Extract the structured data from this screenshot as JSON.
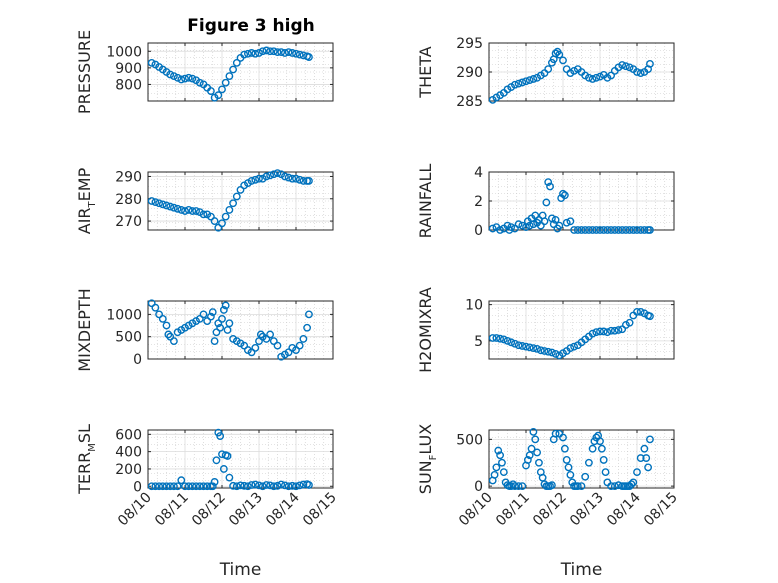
{
  "title": "Figure 3 high",
  "colors": {
    "marker": "#0072BD",
    "axis": "#262626",
    "grid": "#9a9a9a"
  },
  "chart_data": [
    {
      "type": "scatter",
      "ylabel": "PRESSURE",
      "xlim": [
        0,
        5
      ],
      "ylim": [
        700,
        1050
      ],
      "yticks": [
        800,
        900,
        1000
      ],
      "xticks": [
        0,
        1,
        2,
        3,
        4,
        5
      ],
      "x": [
        0.1,
        0.2,
        0.3,
        0.4,
        0.5,
        0.6,
        0.7,
        0.8,
        0.9,
        1.0,
        1.1,
        1.2,
        1.3,
        1.4,
        1.5,
        1.6,
        1.7,
        1.8,
        1.9,
        2.0,
        2.1,
        2.2,
        2.3,
        2.4,
        2.5,
        2.6,
        2.7,
        2.8,
        2.9,
        3.0,
        3.1,
        3.2,
        3.3,
        3.4,
        3.5,
        3.6,
        3.7,
        3.8,
        3.9,
        4.0,
        4.1,
        4.2,
        4.3,
        4.35
      ],
      "y": [
        930,
        920,
        905,
        890,
        875,
        860,
        850,
        840,
        830,
        835,
        840,
        835,
        825,
        810,
        800,
        780,
        760,
        720,
        735,
        770,
        810,
        850,
        890,
        930,
        960,
        980,
        985,
        990,
        985,
        990,
        1000,
        1005,
        1000,
        1000,
        995,
        995,
        990,
        995,
        990,
        985,
        980,
        975,
        970,
        965
      ]
    },
    {
      "type": "scatter",
      "ylabel": "THETA",
      "xlim": [
        0,
        5
      ],
      "ylim": [
        285,
        295
      ],
      "yticks": [
        285,
        290,
        295
      ],
      "xticks": [
        0,
        1,
        2,
        3,
        4,
        5
      ],
      "x": [
        0.1,
        0.2,
        0.3,
        0.4,
        0.5,
        0.6,
        0.7,
        0.8,
        0.9,
        1.0,
        1.1,
        1.2,
        1.3,
        1.4,
        1.5,
        1.6,
        1.7,
        1.75,
        1.8,
        1.85,
        1.9,
        2.0,
        2.1,
        2.2,
        2.3,
        2.4,
        2.5,
        2.6,
        2.7,
        2.8,
        2.9,
        3.0,
        3.1,
        3.2,
        3.3,
        3.4,
        3.5,
        3.6,
        3.7,
        3.8,
        3.9,
        4.0,
        4.1,
        4.2,
        4.3,
        4.35
      ],
      "y": [
        285.2,
        285.6,
        286.0,
        286.4,
        287.0,
        287.4,
        287.8,
        288.0,
        288.2,
        288.4,
        288.6,
        288.8,
        289.0,
        289.4,
        289.8,
        290.5,
        291.6,
        292.2,
        293.2,
        293.5,
        293.0,
        292.0,
        290.5,
        289.8,
        290.2,
        290.5,
        290.0,
        289.4,
        289.0,
        288.8,
        289.0,
        289.2,
        289.5,
        289.0,
        289.4,
        290.2,
        290.8,
        291.2,
        291.0,
        290.8,
        290.5,
        290.0,
        289.8,
        290.0,
        290.5,
        291.4
      ]
    },
    {
      "type": "scatter",
      "ylabel": "AIR",
      "ylabel_sub": "T",
      "ylabel_tail": "EMP",
      "xlim": [
        0,
        5
      ],
      "ylim": [
        266,
        292
      ],
      "yticks": [
        270,
        280,
        290
      ],
      "xticks": [
        0,
        1,
        2,
        3,
        4,
        5
      ],
      "x": [
        0.1,
        0.2,
        0.3,
        0.4,
        0.5,
        0.6,
        0.7,
        0.8,
        0.9,
        1.0,
        1.1,
        1.2,
        1.3,
        1.4,
        1.5,
        1.6,
        1.7,
        1.8,
        1.9,
        2.0,
        2.1,
        2.2,
        2.3,
        2.4,
        2.5,
        2.6,
        2.7,
        2.8,
        2.9,
        3.0,
        3.1,
        3.2,
        3.3,
        3.4,
        3.5,
        3.6,
        3.7,
        3.8,
        3.9,
        4.0,
        4.1,
        4.2,
        4.3,
        4.35
      ],
      "y": [
        279,
        278.5,
        278,
        277.5,
        277,
        276.5,
        276,
        275.5,
        275,
        274.5,
        275,
        274.5,
        274.5,
        274,
        273,
        273,
        272,
        270,
        267,
        269,
        272,
        275,
        278,
        281,
        284,
        286,
        287,
        288,
        288.5,
        289,
        289,
        290,
        290.5,
        291,
        291.5,
        291,
        290,
        289.5,
        289,
        289,
        288.5,
        288,
        288,
        288
      ]
    },
    {
      "type": "scatter",
      "ylabel": "RAINFALL",
      "xlim": [
        0,
        5
      ],
      "ylim": [
        0,
        4
      ],
      "yticks": [
        0,
        2,
        4
      ],
      "xticks": [
        0,
        1,
        2,
        3,
        4,
        5
      ],
      "x": [
        0.1,
        0.2,
        0.3,
        0.4,
        0.5,
        0.55,
        0.6,
        0.7,
        0.8,
        0.9,
        1.0,
        1.05,
        1.1,
        1.15,
        1.2,
        1.25,
        1.3,
        1.35,
        1.4,
        1.45,
        1.5,
        1.55,
        1.6,
        1.65,
        1.7,
        1.75,
        1.8,
        1.85,
        1.9,
        1.95,
        2.0,
        2.05,
        2.1,
        2.2,
        2.3,
        2.4,
        2.5,
        2.6,
        2.7,
        2.8,
        2.9,
        3.0,
        3.1,
        3.2,
        3.3,
        3.4,
        3.5,
        3.6,
        3.7,
        3.8,
        3.9,
        4.0,
        4.1,
        4.2,
        4.3,
        4.35
      ],
      "y": [
        0.1,
        0.2,
        0.0,
        0.1,
        0.3,
        0.0,
        0.2,
        0.1,
        0.4,
        0.3,
        0.2,
        0.6,
        0.3,
        0.8,
        0.4,
        1.0,
        0.5,
        0.7,
        0.3,
        1.0,
        0.6,
        1.9,
        3.3,
        3.0,
        0.8,
        0.4,
        0.7,
        0.1,
        0.3,
        2.2,
        2.5,
        2.4,
        0.5,
        0.6,
        0.0,
        0.0,
        0.0,
        0.0,
        0.0,
        0.0,
        0.0,
        0.0,
        0.0,
        0.0,
        0.0,
        0.0,
        0.0,
        0.0,
        0.0,
        0.0,
        0.0,
        0.0,
        0.0,
        0.0,
        0.0,
        0.0
      ]
    },
    {
      "type": "scatter",
      "ylabel": "MIXDEPTH",
      "xlim": [
        0,
        5
      ],
      "ylim": [
        0,
        1300
      ],
      "yticks": [
        0,
        500,
        1000
      ],
      "xticks": [
        0,
        1,
        2,
        3,
        4,
        5
      ],
      "x": [
        0.1,
        0.2,
        0.3,
        0.4,
        0.5,
        0.55,
        0.6,
        0.7,
        0.8,
        0.9,
        1.0,
        1.1,
        1.2,
        1.3,
        1.4,
        1.5,
        1.6,
        1.7,
        1.75,
        1.8,
        1.85,
        1.9,
        1.95,
        2.0,
        2.05,
        2.1,
        2.15,
        2.2,
        2.3,
        2.4,
        2.5,
        2.6,
        2.7,
        2.8,
        2.9,
        3.0,
        3.05,
        3.1,
        3.2,
        3.3,
        3.4,
        3.5,
        3.6,
        3.7,
        3.8,
        3.9,
        4.0,
        4.1,
        4.2,
        4.3,
        4.35
      ],
      "y": [
        1250,
        1150,
        1000,
        900,
        750,
        550,
        500,
        400,
        600,
        650,
        700,
        750,
        800,
        850,
        900,
        1000,
        850,
        950,
        1050,
        400,
        600,
        800,
        700,
        900,
        1100,
        1200,
        650,
        800,
        450,
        400,
        350,
        300,
        200,
        150,
        250,
        400,
        550,
        500,
        450,
        550,
        400,
        300,
        50,
        100,
        150,
        250,
        200,
        300,
        450,
        700,
        1000
      ]
    },
    {
      "type": "scatter",
      "ylabel": "H2OMIXRA",
      "xlim": [
        0,
        5
      ],
      "ylim": [
        2.5,
        10.5
      ],
      "yticks": [
        5,
        10
      ],
      "xticks": [
        0,
        1,
        2,
        3,
        4,
        5
      ],
      "x": [
        0.1,
        0.2,
        0.3,
        0.4,
        0.5,
        0.6,
        0.7,
        0.8,
        0.9,
        1.0,
        1.1,
        1.2,
        1.3,
        1.4,
        1.5,
        1.6,
        1.7,
        1.8,
        1.9,
        2.0,
        2.1,
        2.2,
        2.3,
        2.4,
        2.5,
        2.6,
        2.7,
        2.8,
        2.9,
        3.0,
        3.1,
        3.2,
        3.3,
        3.4,
        3.5,
        3.6,
        3.7,
        3.8,
        3.9,
        4.0,
        4.1,
        4.2,
        4.3,
        4.35
      ],
      "y": [
        5.4,
        5.4,
        5.3,
        5.2,
        5.0,
        4.8,
        4.6,
        4.4,
        4.3,
        4.2,
        4.1,
        4.0,
        3.9,
        3.7,
        3.6,
        3.5,
        3.4,
        3.2,
        3.0,
        3.3,
        3.6,
        4.0,
        4.2,
        4.4,
        4.8,
        5.2,
        5.6,
        6.0,
        6.2,
        6.3,
        6.3,
        6.2,
        6.4,
        6.4,
        6.5,
        6.6,
        7.2,
        7.5,
        8.5,
        9.0,
        9.0,
        8.8,
        8.5,
        8.4
      ]
    },
    {
      "type": "scatter",
      "ylabel": "TERR",
      "ylabel_sub": "M",
      "ylabel_tail": "SL",
      "xlim": [
        0,
        5
      ],
      "ylim": [
        -20,
        650
      ],
      "yticks": [
        0,
        200,
        400,
        600
      ],
      "xticks": [
        0,
        1,
        2,
        3,
        4,
        5
      ],
      "xtick_labels": [
        "08/10",
        "08/11",
        "08/12",
        "08/13",
        "08/14",
        "08/15"
      ],
      "xlabel": "Time",
      "x": [
        0.1,
        0.2,
        0.3,
        0.4,
        0.5,
        0.6,
        0.7,
        0.8,
        0.9,
        1.0,
        1.1,
        1.2,
        1.3,
        1.4,
        1.5,
        1.6,
        1.7,
        1.75,
        1.8,
        1.85,
        1.9,
        1.95,
        2.0,
        2.05,
        2.1,
        2.15,
        2.2,
        2.3,
        2.4,
        2.5,
        2.6,
        2.7,
        2.8,
        2.9,
        3.0,
        3.1,
        3.2,
        3.3,
        3.4,
        3.5,
        3.6,
        3.7,
        3.8,
        3.9,
        4.0,
        4.1,
        4.2,
        4.3,
        4.35
      ],
      "y": [
        0,
        0,
        0,
        0,
        0,
        0,
        0,
        0,
        70,
        0,
        0,
        0,
        0,
        0,
        0,
        0,
        0,
        0,
        50,
        300,
        620,
        580,
        370,
        200,
        360,
        350,
        100,
        5,
        0,
        10,
        5,
        0,
        15,
        20,
        10,
        0,
        15,
        10,
        0,
        5,
        20,
        10,
        0,
        5,
        0,
        10,
        20,
        25,
        15
      ]
    },
    {
      "type": "scatter",
      "ylabel": "SUN",
      "ylabel_sub": "F",
      "ylabel_tail": "LUX",
      "xlim": [
        0,
        5
      ],
      "ylim": [
        -20,
        600
      ],
      "yticks": [
        0,
        500
      ],
      "xticks": [
        0,
        1,
        2,
        3,
        4,
        5
      ],
      "xtick_labels": [
        "08/10",
        "08/11",
        "08/12",
        "08/13",
        "08/14",
        "08/15"
      ],
      "xlabel": "Time",
      "x": [
        0.1,
        0.15,
        0.2,
        0.25,
        0.3,
        0.35,
        0.4,
        0.45,
        0.5,
        0.55,
        0.6,
        0.65,
        0.7,
        0.8,
        0.9,
        1.0,
        1.05,
        1.1,
        1.15,
        1.2,
        1.25,
        1.3,
        1.35,
        1.4,
        1.45,
        1.5,
        1.55,
        1.6,
        1.65,
        1.7,
        1.75,
        1.8,
        1.9,
        2.0,
        2.05,
        2.1,
        2.15,
        2.2,
        2.25,
        2.3,
        2.35,
        2.4,
        2.5,
        2.6,
        2.7,
        2.8,
        2.85,
        2.9,
        2.95,
        3.0,
        3.05,
        3.1,
        3.15,
        3.2,
        3.3,
        3.4,
        3.5,
        3.6,
        3.65,
        3.7,
        3.75,
        3.8,
        3.85,
        3.9,
        4.0,
        4.1,
        4.2,
        4.25,
        4.3,
        4.35
      ],
      "y": [
        60,
        120,
        200,
        380,
        330,
        250,
        150,
        40,
        10,
        0,
        0,
        20,
        0,
        0,
        0,
        220,
        280,
        330,
        400,
        580,
        500,
        360,
        250,
        150,
        90,
        20,
        0,
        0,
        0,
        10,
        500,
        560,
        560,
        520,
        400,
        280,
        200,
        120,
        40,
        0,
        0,
        0,
        0,
        100,
        250,
        400,
        480,
        520,
        540,
        480,
        400,
        280,
        150,
        40,
        0,
        0,
        10,
        0,
        0,
        0,
        0,
        0,
        20,
        40,
        150,
        300,
        400,
        300,
        200,
        500
      ]
    }
  ]
}
